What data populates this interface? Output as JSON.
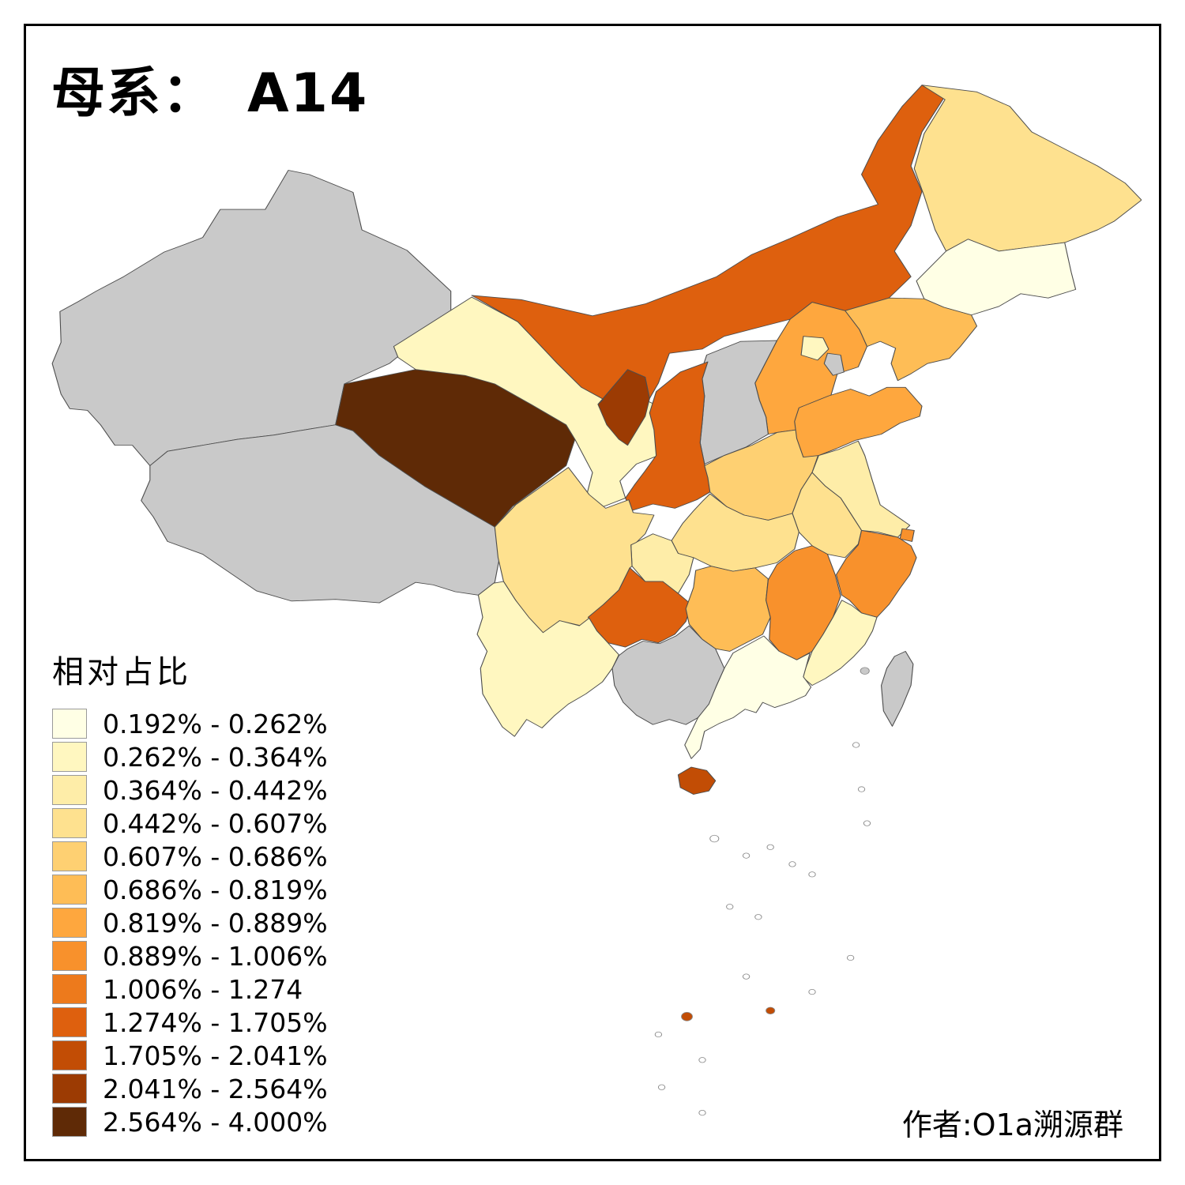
{
  "title": {
    "prefix": "母系：",
    "haplogroup": "A14"
  },
  "legend": {
    "title": "相对占比",
    "classes": [
      {
        "label": "0.192% - 0.262%",
        "color": "#FFFFE5"
      },
      {
        "label": "0.262% - 0.364%",
        "color": "#FFF7C0"
      },
      {
        "label": "0.364% - 0.442%",
        "color": "#FEEDA8"
      },
      {
        "label": "0.442% - 0.607%",
        "color": "#FEE18F"
      },
      {
        "label": "0.607% - 0.686%",
        "color": "#FED072"
      },
      {
        "label": "0.686% - 0.819%",
        "color": "#FEBD56"
      },
      {
        "label": "0.819% - 0.889%",
        "color": "#FEA73E"
      },
      {
        "label": "0.889% - 1.006%",
        "color": "#F8912C"
      },
      {
        "label": "1.006% - 1.274",
        "color": "#ED7A1C"
      },
      {
        "label": "1.274% - 1.705%",
        "color": "#DE600E"
      },
      {
        "label": "1.705% - 2.041%",
        "color": "#C24D05"
      },
      {
        "label": "2.041% - 2.564%",
        "color": "#9C3B03"
      },
      {
        "label": "2.564% - 4.000%",
        "color": "#5F2A06"
      }
    ]
  },
  "attribution": {
    "text": "作者:O1a溯源群"
  },
  "map": {
    "no_data_color": "#C9C9C9",
    "border_color": "#4D4D4D",
    "sea_color": "#FFFFFF",
    "regions": [
      {
        "name": "xinjiang",
        "class": null
      },
      {
        "name": "tibet",
        "class": null
      },
      {
        "name": "shanxi",
        "class": null
      },
      {
        "name": "tianjin",
        "class": null
      },
      {
        "name": "guangxi",
        "class": null
      },
      {
        "name": "taiwan",
        "class": null
      },
      {
        "name": "qinghai",
        "class": 13
      },
      {
        "name": "ningxia",
        "class": 12
      },
      {
        "name": "hainan",
        "class": 11
      },
      {
        "name": "south-china-sea-islands",
        "class": 11
      },
      {
        "name": "inner-mongolia",
        "class": 10
      },
      {
        "name": "shaanxi",
        "class": 10
      },
      {
        "name": "guizhou",
        "class": 10
      },
      {
        "name": "zhejiang",
        "class": 8
      },
      {
        "name": "jiangxi",
        "class": 8
      },
      {
        "name": "shanghai",
        "class": 8
      },
      {
        "name": "hebei",
        "class": 7
      },
      {
        "name": "shandong",
        "class": 7
      },
      {
        "name": "liaoning",
        "class": 6
      },
      {
        "name": "hunan",
        "class": 6
      },
      {
        "name": "henan",
        "class": 5
      },
      {
        "name": "heilongjiang",
        "class": 4
      },
      {
        "name": "sichuan",
        "class": 4
      },
      {
        "name": "hubei",
        "class": 4
      },
      {
        "name": "anhui",
        "class": 4
      },
      {
        "name": "jiangsu",
        "class": 3
      },
      {
        "name": "chongqing",
        "class": 3
      },
      {
        "name": "gansu",
        "class": 2
      },
      {
        "name": "beijing",
        "class": 2
      },
      {
        "name": "yunnan",
        "class": 2
      },
      {
        "name": "fujian",
        "class": 2
      },
      {
        "name": "jilin",
        "class": 1
      },
      {
        "name": "guangdong",
        "class": 1
      }
    ]
  }
}
